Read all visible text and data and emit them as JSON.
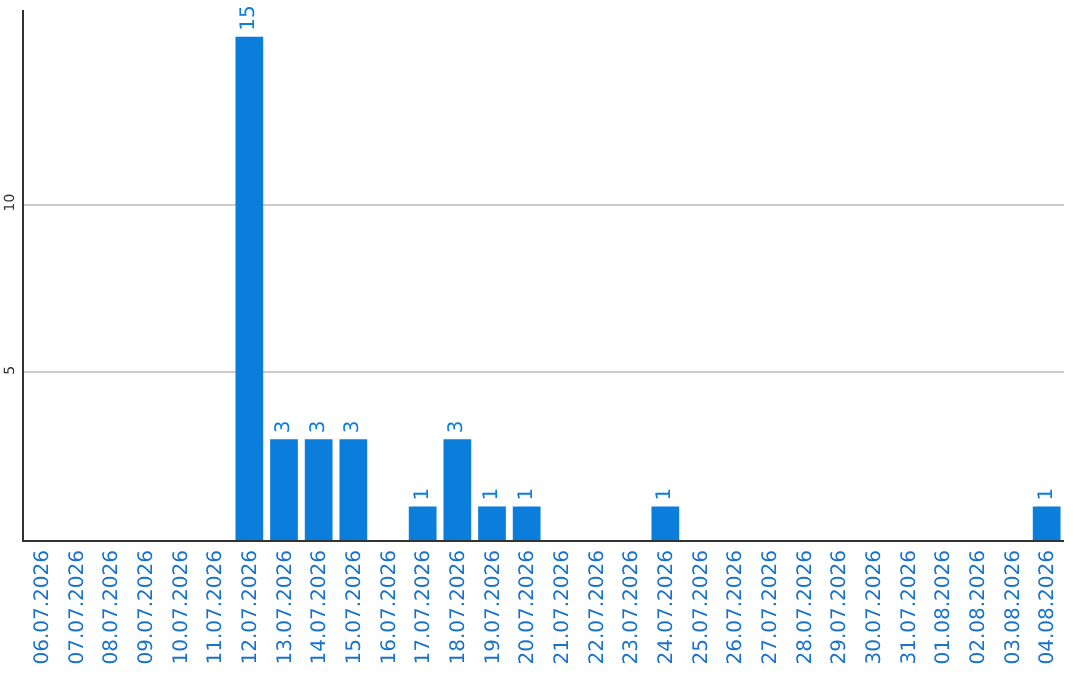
{
  "chart_data": {
    "type": "bar",
    "categories": [
      "06.07.2026",
      "07.07.2026",
      "08.07.2026",
      "09.07.2026",
      "10.07.2026",
      "11.07.2026",
      "12.07.2026",
      "13.07.2026",
      "14.07.2026",
      "15.07.2026",
      "16.07.2026",
      "17.07.2026",
      "18.07.2026",
      "19.07.2026",
      "20.07.2026",
      "21.07.2026",
      "22.07.2026",
      "23.07.2026",
      "24.07.2026",
      "25.07.2026",
      "26.07.2026",
      "27.07.2026",
      "28.07.2026",
      "29.07.2026",
      "30.07.2026",
      "31.07.2026",
      "01.08.2026",
      "02.08.2026",
      "03.08.2026",
      "04.08.2026"
    ],
    "values": [
      0,
      0,
      0,
      0,
      0,
      0,
      15,
      3,
      3,
      3,
      0,
      1,
      3,
      1,
      1,
      0,
      0,
      0,
      1,
      0,
      0,
      0,
      0,
      0,
      0,
      0,
      0,
      0,
      0,
      1
    ],
    "value_labels": [
      null,
      null,
      null,
      null,
      null,
      null,
      "15",
      "3",
      "3",
      "3",
      null,
      "1",
      "3",
      "1",
      "1",
      null,
      null,
      null,
      "1",
      null,
      null,
      null,
      null,
      null,
      null,
      null,
      null,
      null,
      null,
      "1"
    ],
    "color": "#0b7dda",
    "ylim": [
      0,
      15.8
    ],
    "yticks": [
      5,
      10
    ],
    "grid": "y"
  }
}
